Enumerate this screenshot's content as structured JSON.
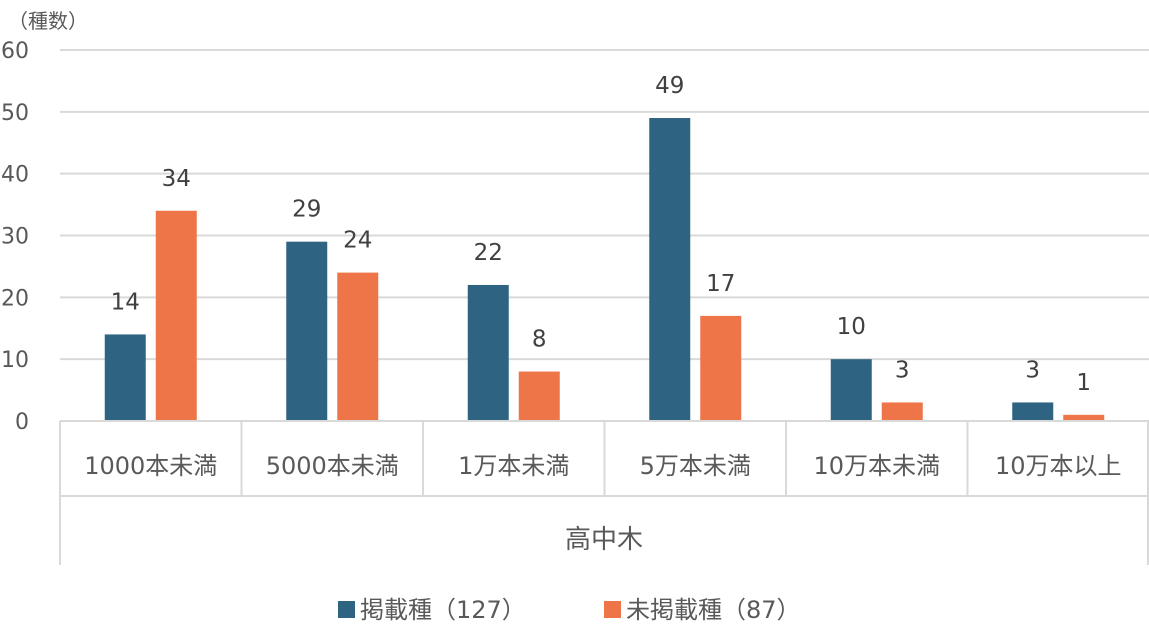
{
  "chart_data": {
    "type": "bar",
    "ylabel": "（種数）",
    "group_label": "高中木",
    "categories": [
      "1000本未満",
      "5000本未満",
      "1万本未満",
      "5万本未満",
      "10万本未満",
      "10万本以上"
    ],
    "series": [
      {
        "name": "掲載種（127）",
        "color": "#2e6382",
        "values": [
          14,
          29,
          22,
          49,
          10,
          3
        ]
      },
      {
        "name": "未掲載種（87）",
        "color": "#ee7548",
        "values": [
          34,
          24,
          8,
          17,
          3,
          1
        ]
      }
    ],
    "ylim": [
      0,
      60
    ],
    "yticks": [
      0,
      10,
      20,
      30,
      40,
      50,
      60
    ],
    "grid": true,
    "legend_position": "bottom"
  }
}
